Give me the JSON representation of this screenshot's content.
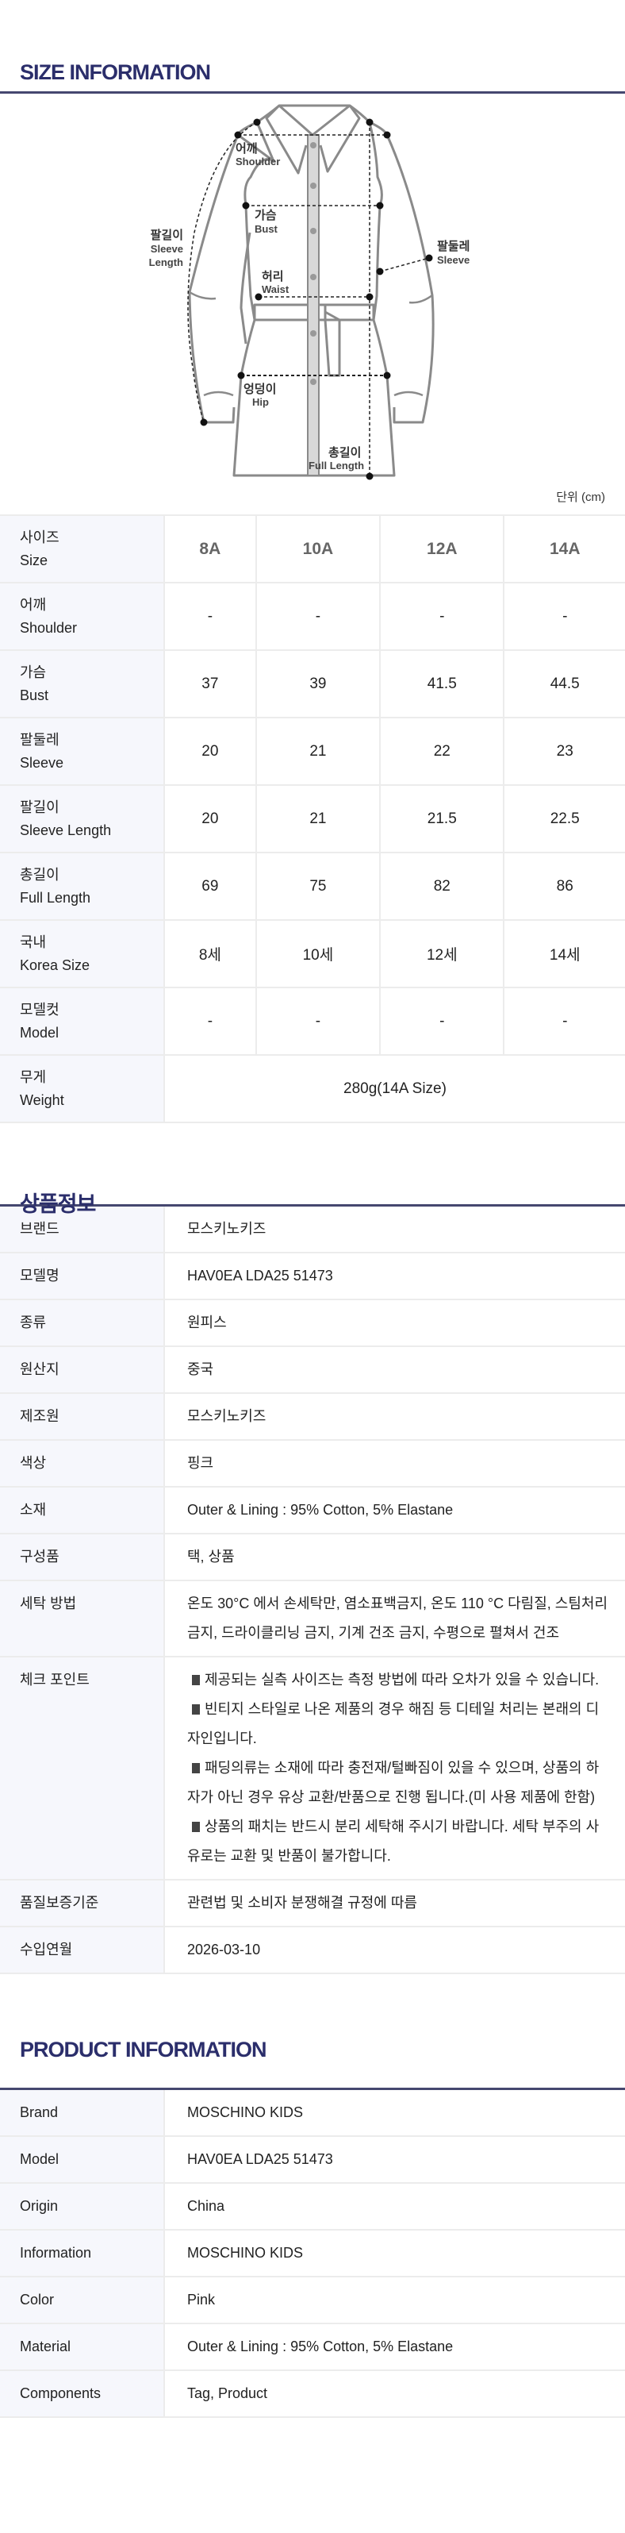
{
  "size_section": {
    "title": "SIZE INFORMATION",
    "unit": "단위 (cm)",
    "diagram_labels": {
      "shoulder_ko": "어깨",
      "shoulder_en": "Shoulder",
      "bust_ko": "가슴",
      "bust_en": "Bust",
      "waist_ko": "허리",
      "waist_en": "Waist",
      "hip_ko": "엉덩이",
      "hip_en": "Hip",
      "full_ko": "총길이",
      "full_en": "Full Length",
      "sleeve_len_ko": "팔길이",
      "sleeve_len_en1": "Sleeve",
      "sleeve_len_en2": "Length",
      "sleeve_ko": "팔둘레",
      "sleeve_en": "Sleeve"
    },
    "table": {
      "header": {
        "ko": "사이즈",
        "en": "Size",
        "sizes": [
          "8A",
          "10A",
          "12A",
          "14A"
        ]
      },
      "rows": [
        {
          "ko": "어깨",
          "en": "Shoulder",
          "values": [
            "-",
            "-",
            "-",
            "-"
          ]
        },
        {
          "ko": "가슴",
          "en": "Bust",
          "values": [
            "37",
            "39",
            "41.5",
            "44.5"
          ]
        },
        {
          "ko": "팔둘레",
          "en": "Sleeve",
          "values": [
            "20",
            "21",
            "22",
            "23"
          ]
        },
        {
          "ko": "팔길이",
          "en": "Sleeve Length",
          "values": [
            "20",
            "21",
            "21.5",
            "22.5"
          ]
        },
        {
          "ko": "총길이",
          "en": "Full Length",
          "values": [
            "69",
            "75",
            "82",
            "86"
          ]
        },
        {
          "ko": "국내",
          "en": "Korea Size",
          "values": [
            "8세",
            "10세",
            "12세",
            "14세"
          ]
        },
        {
          "ko": "모델컷",
          "en": "Model",
          "values": [
            "-",
            "-",
            "-",
            "-"
          ]
        }
      ],
      "weight": {
        "ko": "무게",
        "en": "Weight",
        "value": "280g(14A Size)"
      }
    }
  },
  "info_section": {
    "title": "상품정보",
    "rows": [
      {
        "label": "브랜드",
        "value": "모스키노키즈"
      },
      {
        "label": "모델명",
        "value": "HAV0EA LDA25 51473"
      },
      {
        "label": "종류",
        "value": "원피스"
      },
      {
        "label": "원산지",
        "value": "중국"
      },
      {
        "label": "제조원",
        "value": "모스키노키즈"
      },
      {
        "label": "색상",
        "value": "핑크"
      },
      {
        "label": "소재",
        "value": "Outer & Lining : 95% Cotton, 5% Elastane"
      },
      {
        "label": "구성품",
        "value": "택, 상품"
      },
      {
        "label": "세탁 방법",
        "value": "온도 30°C 에서 손세탁만, 염소표백금지, 온도 110 °C 다림질, 스팀처리 금지, 드라이클리닝 금지, 기계 건조 금지, 수평으로 펼쳐서 건조"
      }
    ],
    "check_point": {
      "label": "체크 포인트",
      "items": [
        "제공되는 실측 사이즈는 측정 방법에 따라 오차가 있을 수 있습니다.",
        "빈티지 스타일로 나온 제품의 경우 해짐 등 디테일 처리는 본래의 디자인입니다.",
        "패딩의류는 소재에 따라 충전재/털빠짐이 있을 수 있으며, 상품의 하자가 아닌 경우 유상 교환/반품으로 진행 됩니다.(미 사용 제품에 한함)",
        "상품의 패치는 반드시 분리 세탁해 주시기 바랍니다. 세탁 부주의 사유로는 교환 및 반품이 불가합니다."
      ]
    },
    "rows_after": [
      {
        "label": "품질보증기준",
        "value": "관련법 및 소비자 분쟁해결 규정에 따름"
      },
      {
        "label": "수입연월",
        "value": "2026-03-10"
      }
    ]
  },
  "product_section": {
    "title": "PRODUCT INFORMATION",
    "rows": [
      {
        "label": "Brand",
        "value": "MOSCHINO KIDS"
      },
      {
        "label": "Model",
        "value": "HAV0EA LDA25 51473"
      },
      {
        "label": "Origin",
        "value": "China"
      },
      {
        "label": "Information",
        "value": "MOSCHINO KIDS"
      },
      {
        "label": "Color",
        "value": "Pink"
      },
      {
        "label": "Material",
        "value": "Outer & Lining : 95% Cotton, 5% Elastane"
      },
      {
        "label": "Components",
        "value": "Tag, Product"
      }
    ]
  },
  "colors": {
    "title": "#2b2e6b",
    "rule": "#45476f",
    "label_bg": "#f6f7fc",
    "border": "#ececec"
  }
}
